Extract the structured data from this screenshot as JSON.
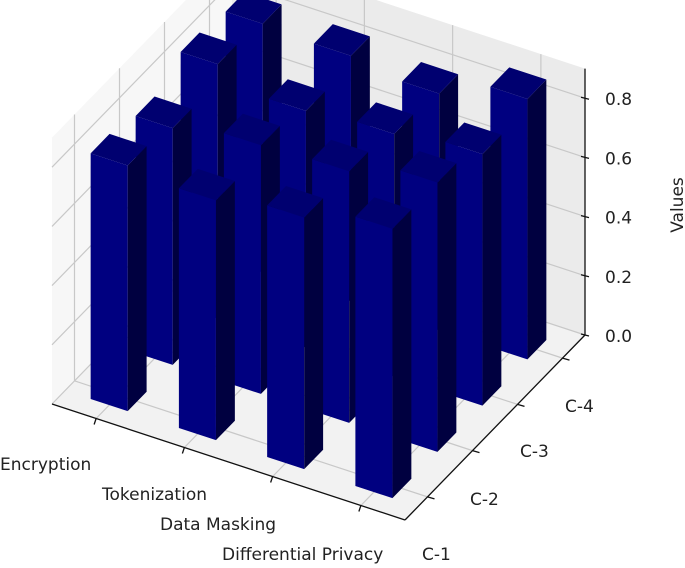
{
  "chart_data": {
    "type": "bar3d",
    "title": "",
    "xlabel": "",
    "ylabel": "",
    "zlabel": "Values",
    "categories": [
      "Encryption",
      "Tokenization",
      "Data Masking",
      "Differential Privacy"
    ],
    "y_categories": [
      "C-1",
      "C-2",
      "C-3",
      "C-4"
    ],
    "zticks": [
      "0.0",
      "0.2",
      "0.4",
      "0.6",
      "0.8"
    ],
    "zlim": [
      0,
      0.9
    ],
    "bar_color": "#000080",
    "series": [
      {
        "name": "C-1",
        "values": [
          0.83,
          0.81,
          0.85,
          0.91
        ]
      },
      {
        "name": "C-2",
        "values": [
          0.8,
          0.84,
          0.85,
          0.91
        ]
      },
      {
        "name": "C-3",
        "values": [
          0.86,
          0.8,
          0.82,
          0.85
        ]
      },
      {
        "name": "C-4",
        "values": [
          0.84,
          0.83,
          0.8,
          0.88
        ]
      }
    ]
  }
}
